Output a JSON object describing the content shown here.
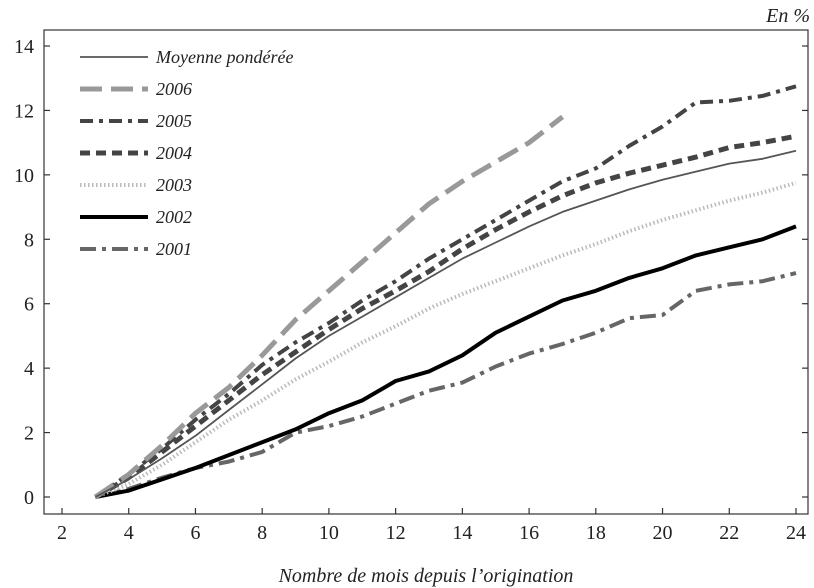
{
  "chart_data": {
    "type": "line",
    "title": "",
    "unit_label": "En %",
    "xlabel": "Nombre de mois depuis l’origination",
    "ylabel": "",
    "xlim": [
      2,
      24
    ],
    "ylim": [
      0,
      14
    ],
    "x_ticks": [
      2,
      4,
      6,
      8,
      10,
      12,
      14,
      16,
      18,
      20,
      22,
      24
    ],
    "y_ticks": [
      0,
      2,
      4,
      6,
      8,
      10,
      12,
      14
    ],
    "grid": false,
    "legend_position": "top-left",
    "series": [
      {
        "name": "Moyenne pondérée",
        "color": "#555555",
        "style": "solid-thin",
        "x": [
          3,
          4,
          5,
          6,
          7,
          8,
          9,
          10,
          11,
          12,
          13,
          14,
          15,
          16,
          17,
          18,
          19,
          20,
          21,
          22,
          23,
          24
        ],
        "y": [
          0,
          0.55,
          1.2,
          1.9,
          2.7,
          3.5,
          4.3,
          5.0,
          5.6,
          6.2,
          6.8,
          7.4,
          7.9,
          8.4,
          8.85,
          9.2,
          9.55,
          9.85,
          10.1,
          10.35,
          10.5,
          10.75
        ]
      },
      {
        "name": "2006",
        "color": "#999999",
        "style": "long-dash",
        "x": [
          3,
          4,
          5,
          6,
          7,
          8,
          9,
          10,
          11,
          12,
          13,
          14,
          15,
          16,
          17
        ],
        "y": [
          0,
          0.7,
          1.6,
          2.6,
          3.4,
          4.4,
          5.5,
          6.4,
          7.3,
          8.2,
          9.1,
          9.8,
          10.4,
          11.0,
          11.8
        ]
      },
      {
        "name": "2005",
        "color": "#444444",
        "style": "dash-dot",
        "x": [
          3,
          4,
          5,
          6,
          7,
          8,
          9,
          10,
          11,
          12,
          13,
          14,
          15,
          16,
          17,
          18,
          19,
          20,
          21,
          22,
          23,
          24
        ],
        "y": [
          0,
          0.7,
          1.5,
          2.4,
          3.2,
          4.1,
          4.8,
          5.4,
          6.1,
          6.7,
          7.4,
          8.0,
          8.6,
          9.2,
          9.8,
          10.2,
          10.9,
          11.5,
          12.25,
          12.3,
          12.45,
          12.75
        ]
      },
      {
        "name": "2004",
        "color": "#444444",
        "style": "short-dash",
        "x": [
          3,
          4,
          5,
          6,
          7,
          8,
          9,
          10,
          11,
          12,
          13,
          14,
          15,
          16,
          17,
          18,
          19,
          20,
          21,
          22,
          23,
          24
        ],
        "y": [
          0,
          0.6,
          1.4,
          2.2,
          3.0,
          3.8,
          4.5,
          5.2,
          5.85,
          6.4,
          7.0,
          7.7,
          8.3,
          8.85,
          9.35,
          9.75,
          10.05,
          10.3,
          10.55,
          10.85,
          11.0,
          11.2
        ]
      },
      {
        "name": "2003",
        "color": "#bbbbbb",
        "style": "dotted",
        "x": [
          3,
          4,
          5,
          6,
          7,
          8,
          9,
          10,
          11,
          12,
          13,
          14,
          15,
          16,
          17,
          18,
          19,
          20,
          21,
          22,
          23,
          24
        ],
        "y": [
          0,
          0.4,
          1.0,
          1.7,
          2.4,
          3.0,
          3.65,
          4.2,
          4.8,
          5.3,
          5.85,
          6.3,
          6.7,
          7.1,
          7.5,
          7.85,
          8.25,
          8.6,
          8.9,
          9.2,
          9.45,
          9.75
        ]
      },
      {
        "name": "2002",
        "color": "#000000",
        "style": "solid-thick",
        "x": [
          3,
          4,
          5,
          6,
          7,
          8,
          9,
          10,
          11,
          12,
          13,
          14,
          15,
          16,
          17,
          18,
          19,
          20,
          21,
          22,
          23,
          24
        ],
        "y": [
          0,
          0.2,
          0.55,
          0.9,
          1.3,
          1.7,
          2.1,
          2.6,
          3.0,
          3.6,
          3.9,
          4.4,
          5.1,
          5.6,
          6.1,
          6.4,
          6.8,
          7.1,
          7.5,
          7.75,
          8.0,
          8.4
        ]
      },
      {
        "name": "2001",
        "color": "#666666",
        "style": "dash-dot-thick",
        "x": [
          3,
          4,
          5,
          6,
          7,
          8,
          9,
          10,
          11,
          12,
          13,
          14,
          15,
          16,
          17,
          18,
          19,
          20,
          21,
          22,
          23,
          24
        ],
        "y": [
          0,
          0.25,
          0.6,
          0.9,
          1.1,
          1.4,
          2.0,
          2.2,
          2.5,
          2.9,
          3.3,
          3.55,
          4.05,
          4.45,
          4.75,
          5.1,
          5.55,
          5.65,
          6.4,
          6.6,
          6.7,
          6.95
        ]
      }
    ]
  }
}
